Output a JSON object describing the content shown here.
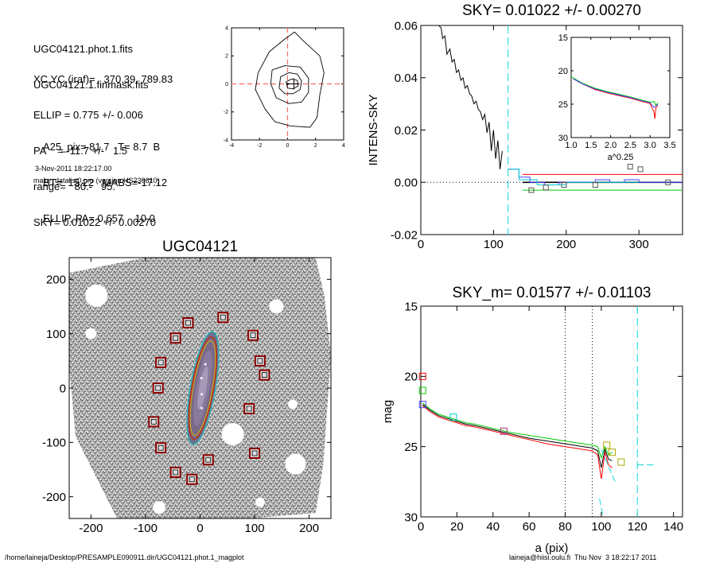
{
  "header": {
    "lines1": [
      "UGC04121.phot.1.fits",
      "UGC04121.1.finmask.fits"
    ],
    "lines2": [
      "XC,YC (iraf)=   370.39, 789.83",
      "ELLIP = 0.775 +/- 0.006",
      "PA    = -11.7 +/-   1.5",
      "range=   80.-   95.",
      "SKY= 0.01022 +/- 0.00270"
    ],
    "lines3": [
      "A25_pix= 81.7   T= 8.7  B",
      "BT=  15.22   MABS=-17.12",
      "ELLIP, PA= 0.657    10.0"
    ],
    "date": "3-Nov-2011 18:22:17.00",
    "program": "make_datalist0.pro (version HS230610)"
  },
  "footer": {
    "path": "/home/laineja/Desktop/PRESAMPLE090911.dir/UGC04121.phot.1_magplot",
    "user": "laineja@hiisi.oulu.fi  Thu Nov  3 18:22:17 2011"
  },
  "chart_data": [
    {
      "type": "contour",
      "id": "contour",
      "title": "",
      "xlim": [
        -4,
        4
      ],
      "ylim": [
        -4,
        4
      ],
      "xticks": [
        "-4",
        "-2",
        "0",
        "2",
        "4"
      ],
      "yticks": [
        "-4",
        "-2",
        "0",
        "2",
        "4"
      ],
      "center": [
        0.45,
        0.0
      ],
      "guide_lines": {
        "x": 0,
        "y": 0,
        "color": "#ff6b6b"
      }
    },
    {
      "type": "line",
      "id": "sky",
      "title": "SKY= 0.01022 +/- 0.00270",
      "xlabel": "",
      "ylabel": "INTENS-SKY",
      "xlim": [
        0,
        360
      ],
      "ylim": [
        -0.02,
        0.06
      ],
      "xticks": [
        "0",
        "100",
        "200",
        "300"
      ],
      "yticks": [
        "-0.02",
        "0.00",
        "0.02",
        "0.04",
        "0.06"
      ],
      "vline": 120,
      "series": [
        {
          "color": "#000000",
          "x": [
            25,
            28,
            30,
            33,
            36,
            40,
            43,
            46,
            49,
            52,
            55,
            58,
            61,
            64,
            67,
            70,
            73,
            76,
            79,
            82,
            85,
            88,
            91,
            94,
            97,
            100,
            103,
            106,
            109,
            112
          ],
          "y": [
            0.06,
            0.059,
            0.055,
            0.056,
            0.049,
            0.051,
            0.046,
            0.047,
            0.042,
            0.043,
            0.039,
            0.04,
            0.036,
            0.037,
            0.034,
            0.033,
            0.03,
            0.031,
            0.028,
            0.027,
            0.024,
            0.026,
            0.019,
            0.023,
            0.012,
            0.02,
            0.009,
            0.016,
            0.005,
            0.012
          ]
        },
        {
          "color": "#000000",
          "x": [
            140,
            360
          ],
          "y": [
            0.0,
            0.0
          ]
        },
        {
          "color": "#ff0000",
          "x": [
            140,
            360
          ],
          "y": [
            0.003,
            0.003
          ]
        },
        {
          "color": "#00cc00",
          "x": [
            140,
            360
          ],
          "y": [
            -0.003,
            -0.003
          ]
        },
        {
          "color": "#4444ff",
          "x": [
            120,
            135,
            135,
            150,
            150,
            170,
            170,
            190,
            190,
            240,
            240,
            260,
            260,
            280,
            280,
            300,
            300,
            360
          ],
          "y": [
            0.005,
            0.005,
            0.002,
            0.002,
            0.0,
            0.0,
            -0.001,
            -0.001,
            0.0,
            0.0,
            0.001,
            0.001,
            0.0,
            0.0,
            0.001,
            0.001,
            0.0,
            0.0
          ]
        },
        {
          "color": "#00cccc",
          "x": [
            120,
            135,
            135,
            160,
            160,
            200,
            200,
            260,
            260,
            300
          ],
          "y": [
            0.005,
            0.005,
            0.001,
            0.001,
            -0.001,
            -0.001,
            0.0,
            0.0,
            0.0,
            0.0
          ]
        }
      ],
      "squares": [
        [
          152,
          -0.003
        ],
        [
          172,
          -0.002
        ],
        [
          197,
          -0.001
        ],
        [
          240,
          -0.001
        ],
        [
          288,
          0.006
        ],
        [
          302,
          0.005
        ],
        [
          340,
          0.0
        ]
      ]
    },
    {
      "type": "line",
      "id": "inset",
      "title": "",
      "xlabel": "a^0.25",
      "ylabel": "",
      "xlim": [
        1.0,
        3.5
      ],
      "ylim": [
        15,
        30
      ],
      "xticks": [
        "1.0",
        "1.5",
        "2.0",
        "2.5",
        "3.0",
        "3.5"
      ],
      "yticks": [
        "15",
        "20",
        "25",
        "30"
      ],
      "series": [
        {
          "color": "#00cc00",
          "x": [
            1.0,
            1.3,
            1.6,
            1.9,
            2.2,
            2.5,
            2.8,
            3.0,
            3.1,
            3.15,
            3.2
          ],
          "y": [
            20.9,
            21.9,
            22.6,
            23.1,
            23.5,
            23.9,
            24.4,
            24.7,
            24.6,
            25.2,
            24.8
          ]
        },
        {
          "color": "#ff0000",
          "x": [
            1.05,
            1.3,
            1.6,
            1.9,
            2.2,
            2.5,
            2.8,
            3.0,
            3.1,
            3.12,
            3.15,
            3.2
          ],
          "y": [
            21.2,
            22.0,
            22.8,
            23.3,
            23.7,
            24.1,
            24.6,
            24.9,
            26.2,
            27.2,
            25.5,
            25.2
          ]
        },
        {
          "color": "#4444ff",
          "x": [
            1.05,
            1.3,
            1.6,
            1.9,
            2.2,
            2.5,
            2.8,
            3.0,
            3.1,
            3.2
          ],
          "y": [
            21.2,
            22.0,
            22.7,
            23.2,
            23.6,
            24.0,
            24.5,
            24.8,
            25.5,
            25.0
          ]
        }
      ]
    },
    {
      "type": "image",
      "id": "galaxy",
      "title": "UGC04121",
      "xlim": [
        -240,
        240
      ],
      "ylim": [
        -240,
        240
      ],
      "xticks": [
        "-200",
        "-100",
        "0",
        "100",
        "200"
      ],
      "yticks": [
        "-200",
        "-100",
        "0",
        "100",
        "200"
      ],
      "galaxy_ellipse": {
        "cx": 5,
        "cy": 0,
        "a": 100,
        "b": 22,
        "pa_deg": 10
      },
      "mask_boxes": [
        [
          -22,
          120
        ],
        [
          42,
          130
        ],
        [
          -45,
          92
        ],
        [
          97,
          97
        ],
        [
          -72,
          47
        ],
        [
          110,
          50
        ],
        [
          118,
          24
        ],
        [
          -77,
          0
        ],
        [
          90,
          -38
        ],
        [
          -85,
          -62
        ],
        [
          -72,
          -110
        ],
        [
          100,
          -120
        ],
        [
          15,
          -132
        ],
        [
          -45,
          -155
        ],
        [
          -15,
          -168
        ]
      ]
    },
    {
      "type": "line",
      "id": "mag",
      "title": "SKY_m=  0.01577 +/- 0.01103",
      "xlabel": "a (pix)",
      "ylabel": "mag",
      "xlim": [
        0,
        145
      ],
      "ylim": [
        15,
        30
      ],
      "xticks": [
        "0",
        "20",
        "40",
        "60",
        "80",
        "100",
        "120",
        "140"
      ],
      "yticks": [
        "15",
        "20",
        "25",
        "30"
      ],
      "dotted_vlines": [
        80,
        95
      ],
      "dashed_vlines": [
        120
      ],
      "series": [
        {
          "color": "#00cc00",
          "x": [
            1,
            5,
            10,
            15,
            20,
            25,
            30,
            40,
            50,
            60,
            70,
            80,
            85,
            90,
            95,
            98,
            100,
            102,
            104,
            106
          ],
          "y": [
            21.9,
            22.3,
            22.7,
            22.9,
            23.1,
            23.3,
            23.4,
            23.7,
            24.0,
            24.2,
            24.4,
            24.6,
            24.7,
            24.8,
            24.9,
            25.0,
            25.8,
            25.0,
            25.6,
            25.4
          ]
        },
        {
          "color": "#000000",
          "x": [
            1,
            5,
            10,
            15,
            20,
            25,
            30,
            40,
            50,
            60,
            70,
            80,
            85,
            90,
            95,
            98,
            100,
            102,
            104,
            106
          ],
          "y": [
            22.0,
            22.4,
            22.8,
            23.0,
            23.2,
            23.4,
            23.5,
            23.8,
            24.1,
            24.4,
            24.6,
            24.8,
            24.9,
            25.0,
            25.1,
            25.3,
            26.5,
            25.2,
            25.9,
            26.0
          ]
        },
        {
          "color": "#ff0000",
          "x": [
            1,
            5,
            10,
            15,
            20,
            25,
            30,
            40,
            50,
            60,
            70,
            80,
            85,
            90,
            95,
            98,
            100,
            102,
            104,
            106
          ],
          "y": [
            22.1,
            22.5,
            22.9,
            23.1,
            23.3,
            23.5,
            23.6,
            23.9,
            24.2,
            24.5,
            24.8,
            25.0,
            25.1,
            25.2,
            25.3,
            25.6,
            27.3,
            25.4,
            26.3,
            26.5
          ]
        }
      ],
      "cyan_segments": [
        [
          [
            99,
            28.7
          ],
          [
            101,
            30
          ]
        ],
        [
          [
            100,
            25.2
          ],
          [
            108,
            27.6
          ]
        ],
        [
          [
            120,
            26.3
          ],
          [
            130,
            26.3
          ]
        ]
      ],
      "squares": [
        {
          "x": 1,
          "y": 20.0,
          "color": "#ff0000"
        },
        {
          "x": 1,
          "y": 21.0,
          "color": "#00cc00"
        },
        {
          "x": 1,
          "y": 22.0,
          "color": "#4444ff"
        },
        {
          "x": 18,
          "y": 22.9,
          "color": "#00cccc"
        },
        {
          "x": 46,
          "y": 23.9,
          "color": "#aa3377"
        },
        {
          "x": 103,
          "y": 24.9,
          "color": "#aaaa00"
        },
        {
          "x": 106,
          "y": 25.4,
          "color": "#aaaa00"
        },
        {
          "x": 111,
          "y": 26.1,
          "color": "#aaaa00"
        }
      ]
    }
  ]
}
